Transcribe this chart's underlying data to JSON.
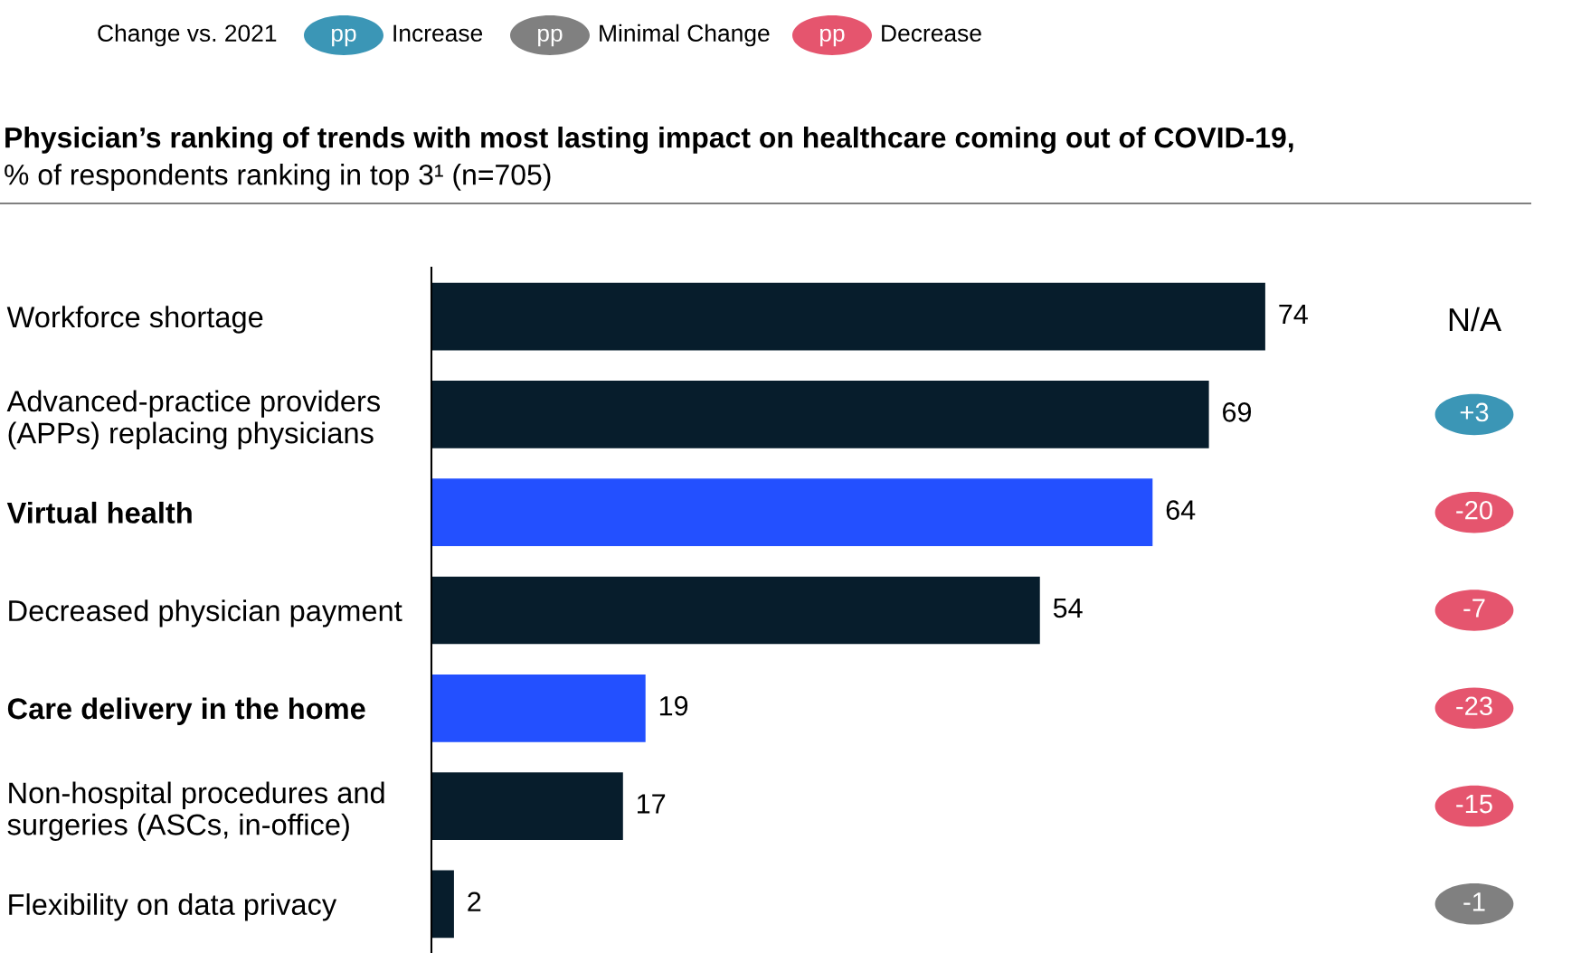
{
  "chart_data": [
    {
      "type": "bar",
      "orientation": "horizontal",
      "title": "Physician’s ranking of trends with most lasting impact on healthcare coming out of COVID-19,",
      "subtitle": "% of respondents ranking in top 3¹ (n=705)",
      "categories": [
        "Workforce shortage",
        "Advanced-practice providers\n(APPs) replacing physicians",
        "Virtual health",
        "Decreased physician payment",
        "Care delivery in the home",
        "Non-hospital procedures and\nsurgeries (ASCs, in-office)",
        "Flexibility on data privacy"
      ],
      "values": [
        74,
        69,
        64,
        54,
        19,
        17,
        2
      ],
      "colors": [
        "#071d2c",
        "#071d2c",
        "#2350ff",
        "#071d2c",
        "#2350ff",
        "#071d2c",
        "#071d2c"
      ],
      "data_labels": true,
      "grid": false,
      "legend": false
    },
    {
      "type": "other",
      "categories": [
        "N/A",
        "+3",
        "-20",
        "-7",
        "-23",
        "-15",
        "-1"
      ],
      "colors": [
        null,
        "#3b96b6",
        "#e5556e",
        "#e5556e",
        "#e5556e",
        "#e5556e",
        "#808080"
      ]
    },
    {
      "type": "other",
      "legend_title": "Change vs. 2021",
      "categories": [
        "Increase",
        "Minimal Change",
        "Decrease"
      ],
      "colors": [
        "#3b96b6",
        "#808080",
        "#e5556e"
      ],
      "annotations": [
        "pp"
      ]
    }
  ]
}
